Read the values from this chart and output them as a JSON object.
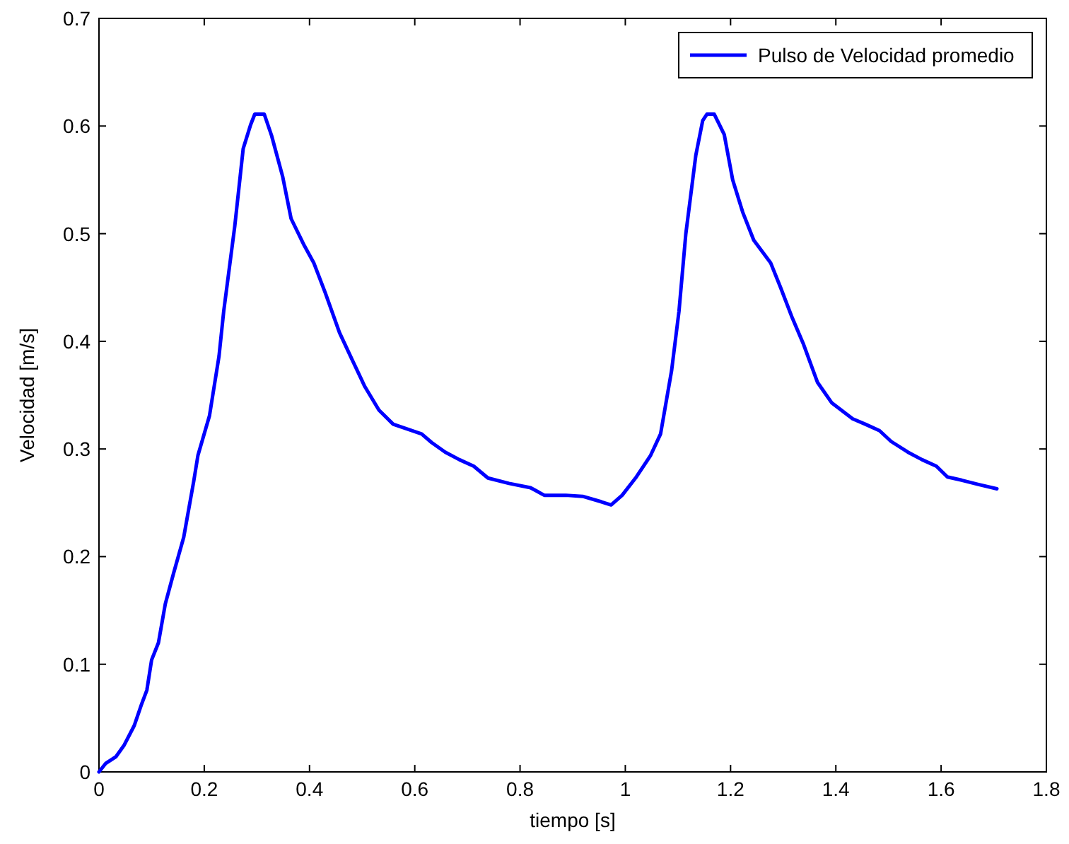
{
  "chart_data": {
    "type": "line",
    "xlabel": "tiempo [s]",
    "ylabel": "Velocidad [m/s]",
    "xlim": [
      0,
      1.8
    ],
    "xticks": [
      0,
      0.2,
      0.4,
      0.6,
      0.8,
      1,
      1.2,
      1.4,
      1.6,
      1.8
    ],
    "ylim": [
      0,
      0.7
    ],
    "yticks": [
      0,
      0.1,
      0.2,
      0.3,
      0.4,
      0.5,
      0.6,
      0.7
    ],
    "grid": false,
    "legend": "top right",
    "marker": "none",
    "line_style": "solid",
    "series": [
      {
        "name": "Pulso de Velocidad promedio",
        "color": "#0000ff",
        "x": [
          0,
          0.013,
          0.032,
          0.048,
          0.067,
          0.081,
          0.091,
          0.1,
          0.113,
          0.126,
          0.142,
          0.161,
          0.18,
          0.188,
          0.21,
          0.228,
          0.237,
          0.258,
          0.274,
          0.288,
          0.296,
          0.314,
          0.328,
          0.349,
          0.365,
          0.39,
          0.408,
          0.43,
          0.457,
          0.478,
          0.505,
          0.532,
          0.559,
          0.613,
          0.632,
          0.658,
          0.685,
          0.712,
          0.739,
          0.779,
          0.82,
          0.846,
          0.887,
          0.919,
          0.954,
          0.973,
          0.994,
          1.021,
          1.048,
          1.067,
          1.088,
          1.102,
          1.115,
          1.134,
          1.147,
          1.155,
          1.169,
          1.188,
          1.204,
          1.223,
          1.244,
          1.276,
          1.295,
          1.317,
          1.338,
          1.365,
          1.392,
          1.432,
          1.456,
          1.483,
          1.505,
          1.537,
          1.564,
          1.591,
          1.612,
          1.639,
          1.671,
          1.706
        ],
        "values": [
          0,
          0.008,
          0.014,
          0.025,
          0.043,
          0.063,
          0.076,
          0.104,
          0.12,
          0.156,
          0.185,
          0.218,
          0.27,
          0.294,
          0.331,
          0.386,
          0.428,
          0.507,
          0.579,
          0.601,
          0.611,
          0.611,
          0.591,
          0.553,
          0.514,
          0.489,
          0.473,
          0.445,
          0.408,
          0.386,
          0.358,
          0.336,
          0.323,
          0.314,
          0.306,
          0.297,
          0.29,
          0.284,
          0.273,
          0.268,
          0.264,
          0.257,
          0.257,
          0.256,
          0.251,
          0.248,
          0.257,
          0.274,
          0.294,
          0.314,
          0.373,
          0.428,
          0.5,
          0.573,
          0.605,
          0.611,
          0.611,
          0.592,
          0.55,
          0.52,
          0.494,
          0.473,
          0.45,
          0.422,
          0.398,
          0.362,
          0.343,
          0.328,
          0.323,
          0.317,
          0.307,
          0.297,
          0.29,
          0.284,
          0.274,
          0.271,
          0.267,
          0.263
        ]
      }
    ]
  }
}
